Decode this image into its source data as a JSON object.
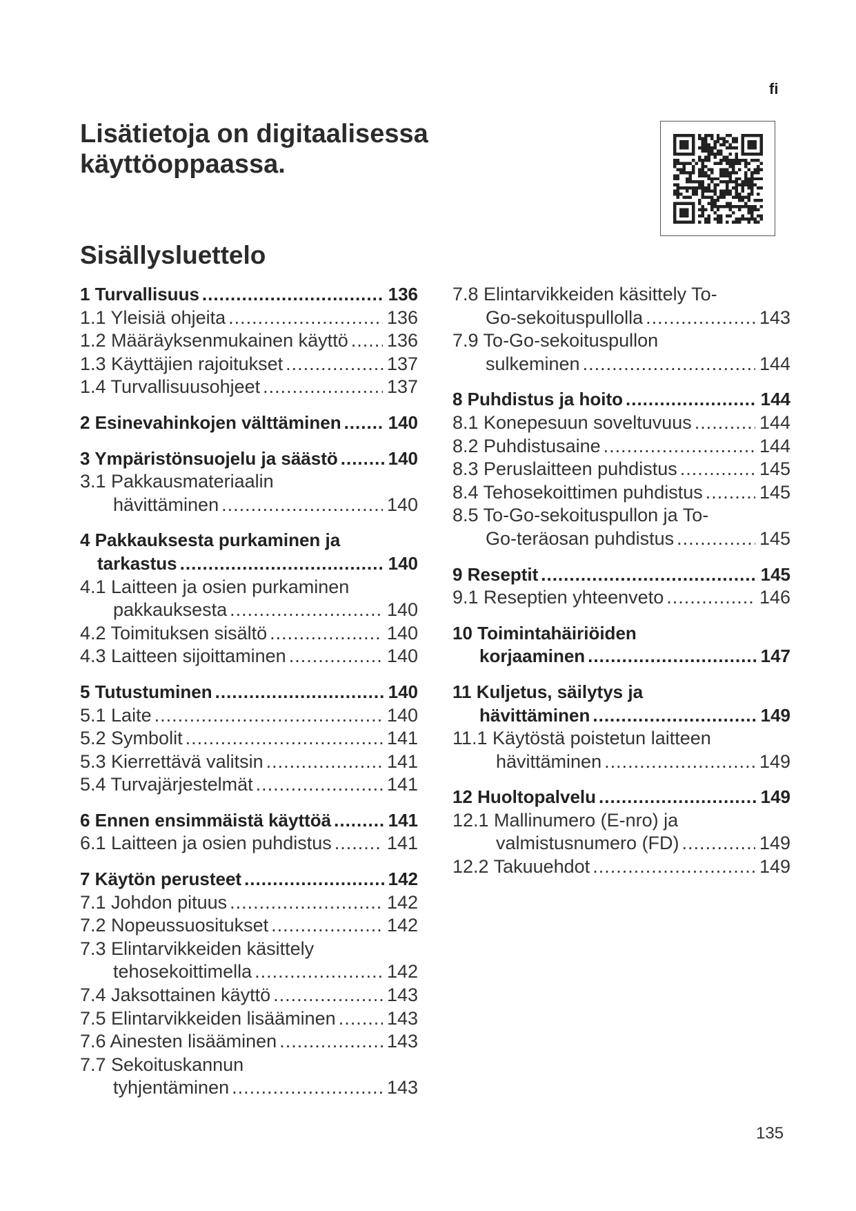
{
  "language_code": "fi",
  "heading": [
    "Lisätietoja on digitaalisessa",
    "käyttöoppaassa."
  ],
  "qr_code": "qr-code-icon",
  "toc_title": "Sisällysluettelo",
  "left_column": [
    {
      "bold": true,
      "lines": [
        "1 Turvallisuus"
      ],
      "page": "136"
    },
    {
      "bold": false,
      "lines": [
        "1.1 Yleisiä ohjeita"
      ],
      "page": "136"
    },
    {
      "bold": false,
      "lines": [
        "1.2 Määräyksenmukainen käyttö"
      ],
      "page": "136"
    },
    {
      "bold": false,
      "lines": [
        "1.3 Käyttäjien rajoitukset"
      ],
      "page": "137"
    },
    {
      "bold": false,
      "lines": [
        "1.4 Turvallisuusohjeet"
      ],
      "page": "137"
    },
    {
      "bold": true,
      "lines": [
        "2 Esinevahinkojen välttäminen"
      ],
      "page": "140"
    },
    {
      "bold": true,
      "lines": [
        "3 Ympäristönsuojelu ja säästö"
      ],
      "page": "140"
    },
    {
      "bold": false,
      "lines": [
        "3.1 Pakkausmateriaalin",
        "hävittäminen"
      ],
      "page": "140"
    },
    {
      "bold": true,
      "lines": [
        "4 Pakkauksesta purkaminen ja",
        "tarkastus"
      ],
      "page": "140"
    },
    {
      "bold": false,
      "lines": [
        "4.1 Laitteen ja osien purkaminen",
        "pakkauksesta"
      ],
      "page": "140"
    },
    {
      "bold": false,
      "lines": [
        "4.2 Toimituksen sisältö"
      ],
      "page": "140"
    },
    {
      "bold": false,
      "lines": [
        "4.3 Laitteen sijoittaminen"
      ],
      "page": "140"
    },
    {
      "bold": true,
      "lines": [
        "5 Tutustuminen"
      ],
      "page": "140"
    },
    {
      "bold": false,
      "lines": [
        "5.1 Laite"
      ],
      "page": "140"
    },
    {
      "bold": false,
      "lines": [
        "5.2 Symbolit"
      ],
      "page": "141"
    },
    {
      "bold": false,
      "lines": [
        "5.3 Kierrettävä valitsin"
      ],
      "page": "141"
    },
    {
      "bold": false,
      "lines": [
        "5.4 Turvajärjestelmät"
      ],
      "page": "141"
    },
    {
      "bold": true,
      "lines": [
        "6 Ennen ensimmäistä käyttöä"
      ],
      "page": "141"
    },
    {
      "bold": false,
      "lines": [
        "6.1 Laitteen ja osien puhdistus"
      ],
      "page": "141"
    },
    {
      "bold": true,
      "lines": [
        "7 Käytön perusteet"
      ],
      "page": "142"
    },
    {
      "bold": false,
      "lines": [
        "7.1 Johdon pituus"
      ],
      "page": "142"
    },
    {
      "bold": false,
      "lines": [
        "7.2 Nopeussuositukset"
      ],
      "page": "142"
    },
    {
      "bold": false,
      "lines": [
        "7.3 Elintarvikkeiden käsittely",
        "tehosekoittimella"
      ],
      "page": "142"
    },
    {
      "bold": false,
      "lines": [
        "7.4 Jaksottainen käyttö"
      ],
      "page": "143"
    },
    {
      "bold": false,
      "lines": [
        "7.5 Elintarvikkeiden lisääminen"
      ],
      "page": "143"
    },
    {
      "bold": false,
      "lines": [
        "7.6 Ainesten lisääminen"
      ],
      "page": "143"
    },
    {
      "bold": false,
      "lines": [
        "7.7 Sekoituskannun",
        "tyhjentäminen"
      ],
      "page": "143"
    }
  ],
  "right_column": [
    {
      "bold": false,
      "lines": [
        "7.8 Elintarvikkeiden käsittely To-",
        "Go-sekoituspullolla"
      ],
      "page": "143"
    },
    {
      "bold": false,
      "lines": [
        "7.9 To-Go-sekoituspullon",
        "sulkeminen"
      ],
      "page": "144"
    },
    {
      "bold": true,
      "lines": [
        "8 Puhdistus ja hoito"
      ],
      "page": "144"
    },
    {
      "bold": false,
      "lines": [
        "8.1 Konepesuun soveltuvuus"
      ],
      "page": "144"
    },
    {
      "bold": false,
      "lines": [
        "8.2 Puhdistusaine"
      ],
      "page": "144"
    },
    {
      "bold": false,
      "lines": [
        "8.3 Peruslaitteen puhdistus"
      ],
      "page": "145"
    },
    {
      "bold": false,
      "lines": [
        "8.4 Tehosekoittimen puhdistus"
      ],
      "page": "145"
    },
    {
      "bold": false,
      "lines": [
        "8.5 To-Go-sekoituspullon ja To-",
        "Go-teräosan puhdistus"
      ],
      "page": "145"
    },
    {
      "bold": true,
      "lines": [
        "9 Reseptit"
      ],
      "page": "145"
    },
    {
      "bold": false,
      "lines": [
        "9.1 Reseptien yhteenveto"
      ],
      "page": "146"
    },
    {
      "bold": true,
      "lines": [
        "10 Toimintahäiriöiden",
        "korjaaminen"
      ],
      "page": "147"
    },
    {
      "bold": true,
      "lines": [
        "11 Kuljetus, säilytys ja",
        "hävittäminen"
      ],
      "page": "149"
    },
    {
      "bold": false,
      "lines": [
        "11.1 Käytöstä poistetun laitteen",
        "hävittäminen"
      ],
      "page": "149"
    },
    {
      "bold": true,
      "lines": [
        "12 Huoltopalvelu"
      ],
      "page": "149"
    },
    {
      "bold": false,
      "lines": [
        "12.1 Mallinumero (E-nro) ja",
        "valmistusnumero (FD)"
      ],
      "page": "149"
    },
    {
      "bold": false,
      "lines": [
        "12.2 Takuuehdot"
      ],
      "page": "149"
    }
  ],
  "page_number": "135"
}
